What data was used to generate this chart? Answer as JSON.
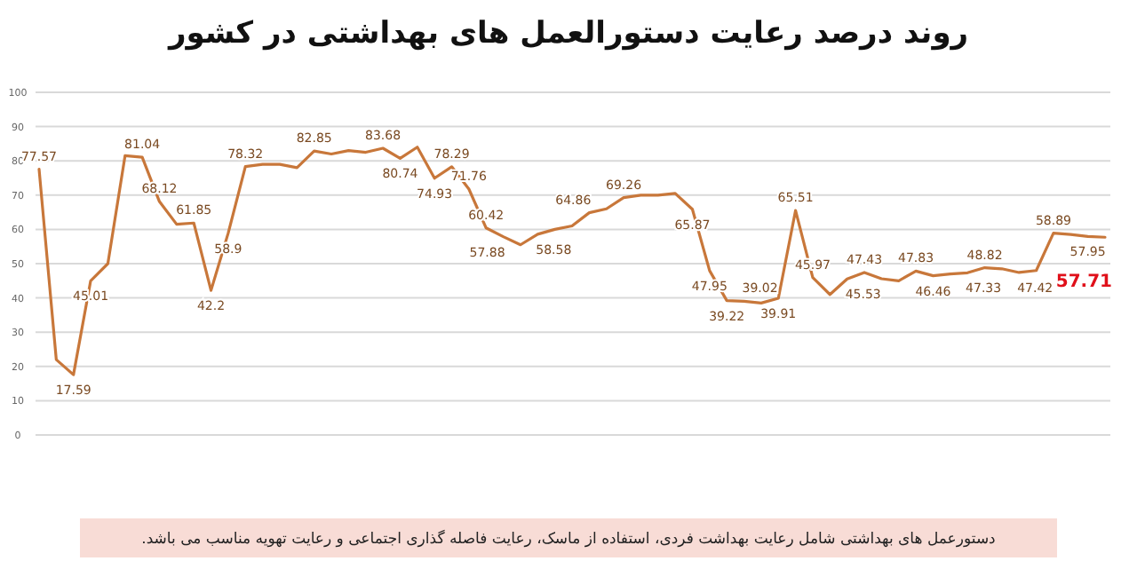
{
  "chart_data": {
    "type": "line",
    "title": "روند درصد رعایت دستورالعمل های بهداشتی در کشور",
    "categories": [
      null,
      null,
      null,
      null,
      null,
      null,
      null,
      null,
      null,
      null,
      null,
      null,
      null,
      null,
      null,
      null,
      null,
      null,
      null,
      null,
      null,
      null,
      null,
      null,
      null,
      null,
      null,
      null,
      null,
      null,
      null,
      null,
      null,
      null,
      null,
      null,
      null,
      null,
      null,
      null,
      null,
      null,
      null,
      null,
      null,
      null,
      null,
      null,
      null,
      null,
      null,
      null,
      null,
      null,
      null,
      null,
      null,
      null,
      null,
      null,
      null,
      null,
      null
    ],
    "series": [
      {
        "color": "#c8773a",
        "values": [
          77.57,
          22,
          17.59,
          45.01,
          50,
          81.5,
          81.04,
          68.12,
          61.5,
          61.85,
          42.2,
          58.9,
          78.32,
          79,
          79,
          78,
          82.85,
          82,
          83,
          82.5,
          83.68,
          80.74,
          84,
          74.93,
          78.29,
          71.76,
          60.42,
          57.88,
          55.5,
          58.58,
          60,
          61,
          64.86,
          66,
          69.26,
          70,
          70,
          70.5,
          65.87,
          47.95,
          39.22,
          39.02,
          38.5,
          39.91,
          65.51,
          45.97,
          41,
          45.53,
          47.43,
          45.6,
          45,
          47.83,
          46.46,
          47,
          47.33,
          48.82,
          48.5,
          47.42,
          48,
          58.89,
          58.5,
          57.95,
          57.71
        ],
        "value_labels": [
          "77.57",
          null,
          "17.59",
          "45.01",
          null,
          null,
          "81.04",
          "68.12",
          null,
          "61.85",
          "42.2",
          "58.9",
          "78.32",
          null,
          null,
          null,
          "82.85",
          null,
          null,
          null,
          "83.68",
          "80.74",
          null,
          "74.93",
          "78.29",
          "71.76",
          "60.42",
          "57.88",
          null,
          "58.58",
          null,
          null,
          "64.86",
          null,
          "69.26",
          null,
          null,
          null,
          "65.87",
          "47.95",
          "39.22",
          "39.02",
          null,
          "39.91",
          "65.51",
          "45.97",
          null,
          "45.53",
          "47.43",
          null,
          null,
          "47.83",
          "46.46",
          null,
          "47.33",
          "48.82",
          null,
          "47.42",
          null,
          "58.89",
          null,
          "57.95",
          "57.71"
        ]
      }
    ],
    "ylim": [
      0,
      100
    ],
    "yticks": [
      0,
      10,
      20,
      30,
      40,
      50,
      60,
      70,
      80,
      90,
      100
    ],
    "grid": "y",
    "tick_labels": "y",
    "marker": "none",
    "line_style": "solid",
    "annotations": [
      "دستورعمل های بهداشتی شامل رعایت بهداشت فردی، استفاده از ماسک، رعایت فاصله گذاری اجتماعی و رعایت تهویه مناسب می باشد."
    ]
  }
}
